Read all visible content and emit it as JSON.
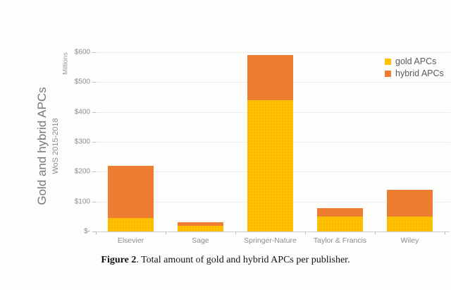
{
  "chart_data": {
    "type": "bar",
    "stacked": true,
    "categories": [
      "Elsevier",
      "Sage",
      "Springer-Nature",
      "Taylor & Francis",
      "Wiley"
    ],
    "series": [
      {
        "name": "gold APCs",
        "color": "#FFC000",
        "values": [
          45,
          20,
          440,
          50,
          50
        ]
      },
      {
        "name": "hybrid APCs",
        "color": "#ED7D31",
        "values": [
          175,
          11,
          150,
          28,
          90
        ]
      }
    ],
    "ylabel": "Gold and hybrid APCs",
    "ylabel_subtitle": "WoS 2015-2018",
    "y_units": "Millions",
    "y_ticks": [
      {
        "label": "$600",
        "value": 600
      },
      {
        "label": "$500",
        "value": 500
      },
      {
        "label": "$400",
        "value": 400
      },
      {
        "label": "$300",
        "value": 300
      },
      {
        "label": "$200",
        "value": 200
      },
      {
        "label": "$100",
        "value": 100
      },
      {
        "label": "$-",
        "value": 0
      }
    ],
    "ylim": [
      0,
      620
    ],
    "grid": true,
    "legend_position": "top-right",
    "grid_color": "#dcdcdc",
    "axis_text_color": "#8c8c8c"
  },
  "caption": {
    "figure_label": "Figure 2",
    "text": ". Total amount of gold and hybrid APCs per publisher."
  }
}
